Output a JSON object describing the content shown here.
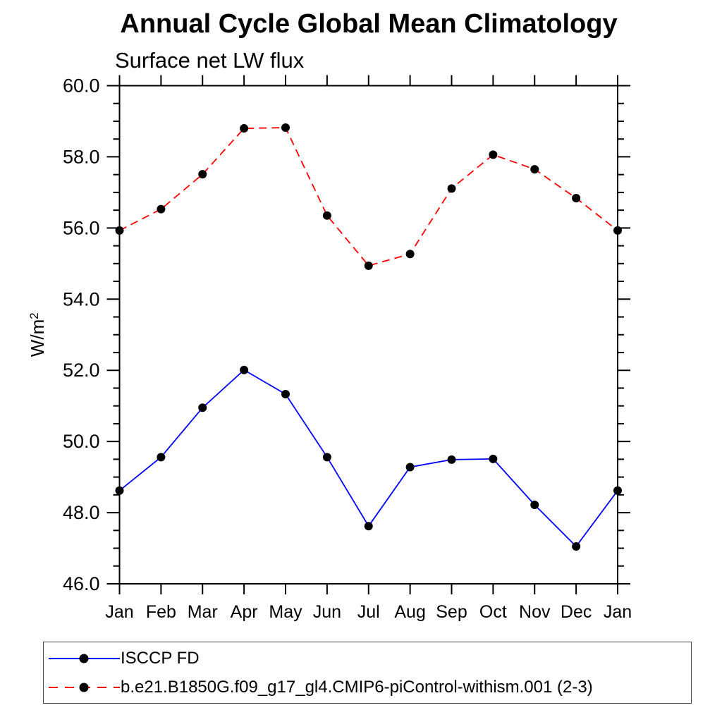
{
  "title": "Annual Cycle Global Mean Climatology",
  "subtitle": "Surface net LW flux",
  "y_axis": {
    "label": "W/m",
    "label_superscript": "2"
  },
  "legend": {
    "items": [
      {
        "label": "ISCCP FD",
        "color": "#0000ff",
        "line_style": "solid",
        "marker": "circle"
      },
      {
        "label": "b.e21.B1850G.f09_g17_gl4.CMIP6-piControl-withism.001 (2-3)",
        "color": "#ff0000",
        "line_style": "dashed",
        "marker": "circle"
      }
    ]
  },
  "chart_data": {
    "type": "line",
    "title": "Annual Cycle Global Mean Climatology",
    "subtitle": "Surface net LW flux",
    "ylabel": "W/m2",
    "categories": [
      "Jan",
      "Feb",
      "Mar",
      "Apr",
      "May",
      "Jun",
      "Jul",
      "Aug",
      "Sep",
      "Oct",
      "Nov",
      "Dec",
      "Jan"
    ],
    "series": [
      {
        "name": "ISCCP FD",
        "color": "#0000ff",
        "line_style": "solid",
        "marker": "circle",
        "marker_color": "#000000",
        "values": [
          48.62,
          49.56,
          50.95,
          52.01,
          51.33,
          49.56,
          47.62,
          49.28,
          49.49,
          49.51,
          48.22,
          47.05,
          48.62
        ]
      },
      {
        "name": "b.e21.B1850G.f09_g17_gl4.CMIP6-piControl-withism.001 (2-3)",
        "color": "#ff0000",
        "line_style": "dashed",
        "marker": "circle",
        "marker_color": "#000000",
        "values": [
          55.93,
          56.53,
          57.51,
          58.8,
          58.82,
          56.35,
          54.94,
          55.27,
          57.11,
          58.06,
          57.65,
          56.84,
          55.93
        ]
      }
    ],
    "ylim": [
      46.0,
      60.0
    ],
    "ytick_major": 2.0,
    "ytick_minor": 0.5,
    "grid": false,
    "legend_position": "bottom-left-box"
  }
}
